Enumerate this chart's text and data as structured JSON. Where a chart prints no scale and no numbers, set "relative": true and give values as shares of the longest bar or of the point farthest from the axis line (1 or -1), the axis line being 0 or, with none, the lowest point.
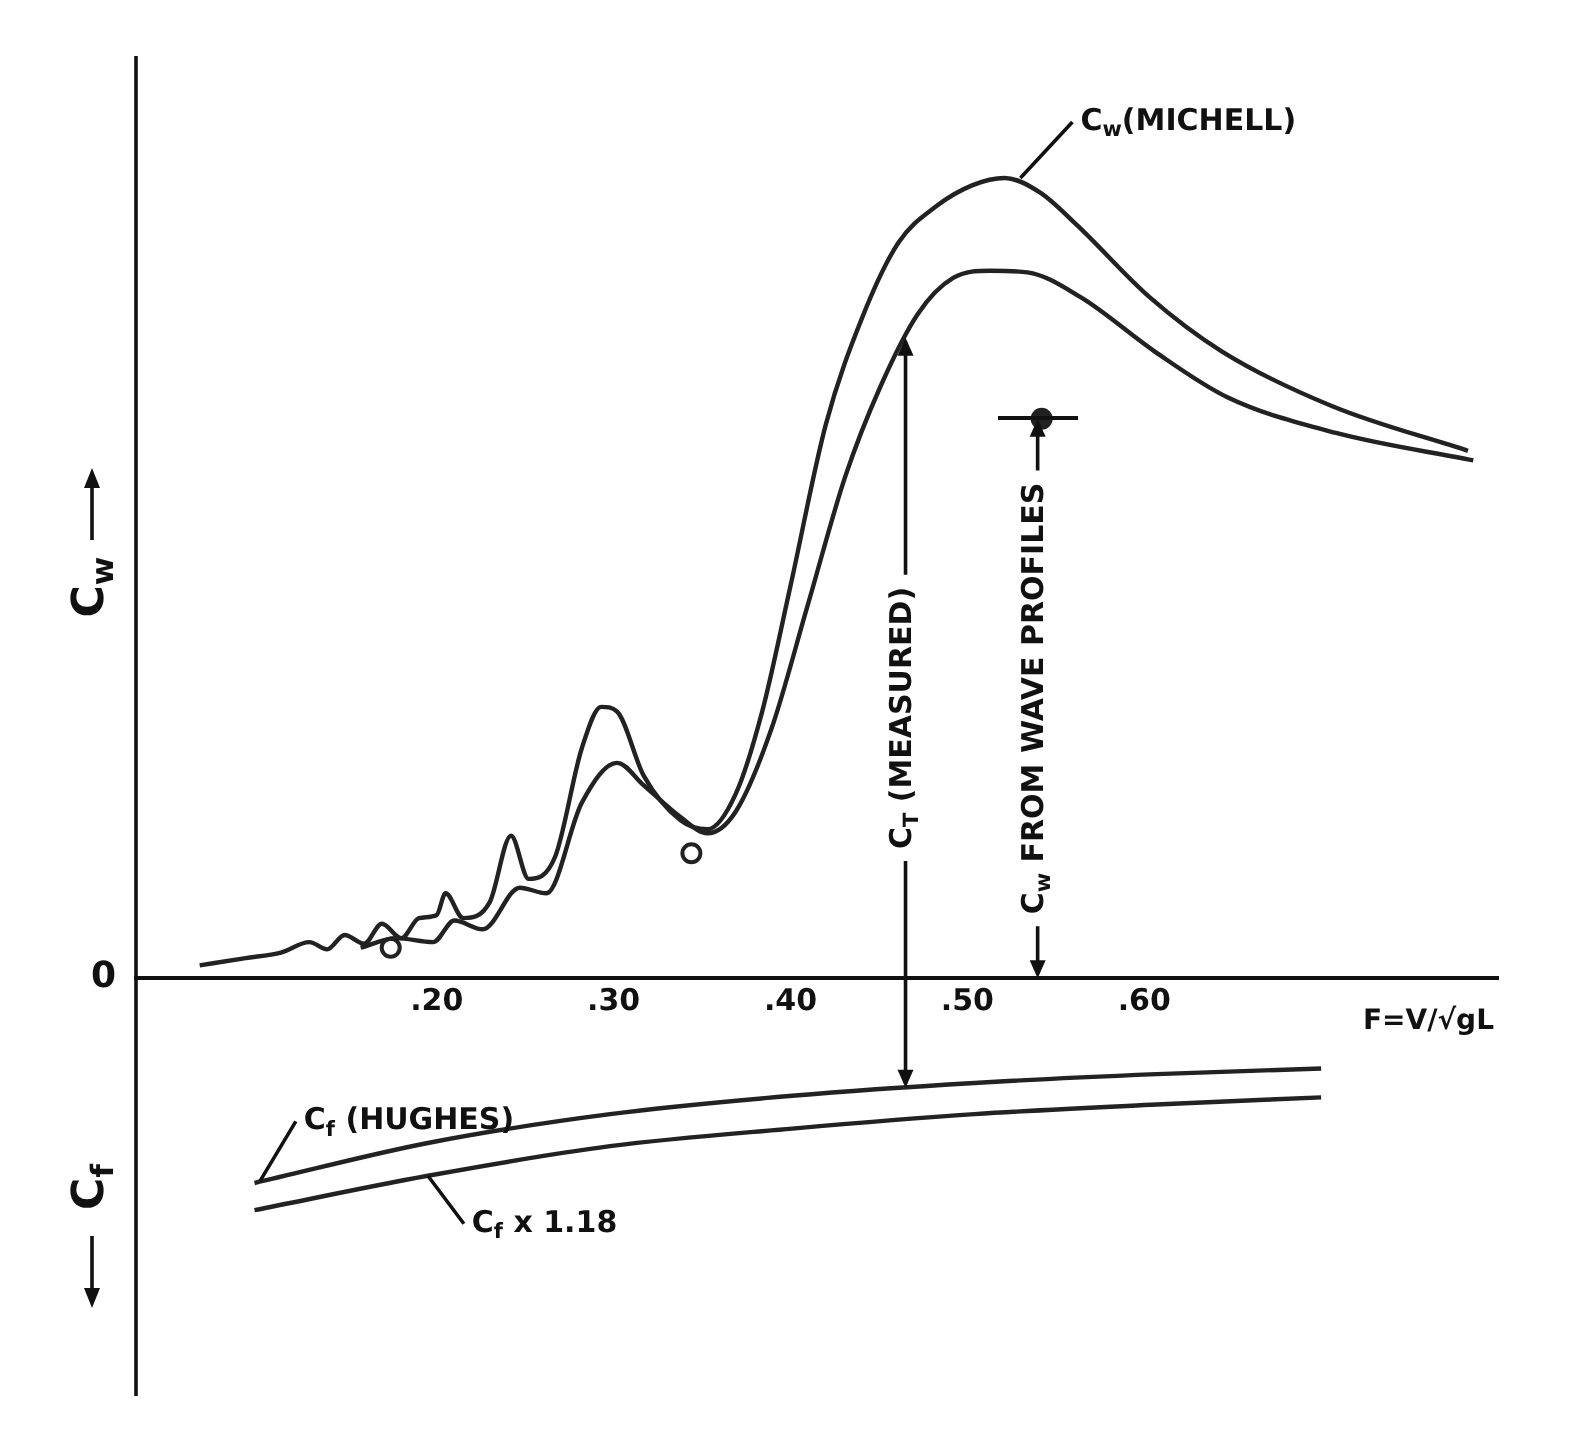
{
  "chart_data": {
    "type": "line",
    "relative": true,
    "ylabel": "C$_{w}$",
    "xlabel": "F=V/√gL",
    "xlim": [
      0.03,
      0.8
    ],
    "xticks": [
      {
        "value": 0.2,
        "label": ".20"
      },
      {
        "value": 0.3,
        "label": ".30"
      },
      {
        "value": 0.4,
        "label": ".40"
      },
      {
        "value": 0.5,
        "label": ".50"
      },
      {
        "value": 0.6,
        "label": ".60"
      }
    ],
    "series": [
      {
        "color": "#222222",
        "x": [
          0.066,
          0.092,
          0.112,
          0.128,
          0.138,
          0.148,
          0.159,
          0.169,
          0.18,
          0.19,
          0.2,
          0.205,
          0.215,
          0.23,
          0.242,
          0.252,
          0.267,
          0.282,
          0.293,
          0.302,
          0.317,
          0.338,
          0.353,
          0.369,
          0.384,
          0.4,
          0.42,
          0.441,
          0.461,
          0.482,
          0.503,
          0.521,
          0.541,
          0.562,
          0.603,
          0.644,
          0.706,
          0.783
        ],
        "values": [
          0.016,
          0.025,
          0.032,
          0.045,
          0.036,
          0.054,
          0.043,
          0.068,
          0.05,
          0.075,
          0.079,
          0.106,
          0.075,
          0.095,
          0.178,
          0.124,
          0.152,
          0.287,
          0.339,
          0.333,
          0.253,
          0.197,
          0.186,
          0.23,
          0.333,
          0.49,
          0.692,
          0.828,
          0.919,
          0.964,
          0.991,
          1.0,
          0.982,
          0.941,
          0.851,
          0.783,
          0.715,
          0.659
        ]
      },
      {
        "color": "#222222",
        "x": [
          0.157,
          0.177,
          0.198,
          0.21,
          0.226,
          0.247,
          0.262,
          0.282,
          0.302,
          0.317,
          0.338,
          0.353,
          0.369,
          0.389,
          0.41,
          0.431,
          0.451,
          0.472,
          0.492,
          0.513,
          0.534,
          0.564,
          0.606,
          0.647,
          0.709,
          0.786
        ],
        "values": [
          0.038,
          0.05,
          0.045,
          0.072,
          0.061,
          0.113,
          0.106,
          0.219,
          0.269,
          0.241,
          0.201,
          0.181,
          0.208,
          0.31,
          0.468,
          0.627,
          0.74,
          0.83,
          0.875,
          0.884,
          0.882,
          0.851,
          0.783,
          0.726,
          0.681,
          0.647
        ]
      },
      {
        "color": "#222222",
        "x": [
          0.097,
          0.195,
          0.298,
          0.401,
          0.504,
          0.607,
          0.7
        ],
        "values": [
          -0.256,
          -0.206,
          -0.17,
          -0.147,
          -0.131,
          -0.12,
          -0.113
        ]
      },
      {
        "color": "#222222",
        "x": [
          0.097,
          0.195,
          0.298,
          0.401,
          0.504,
          0.607,
          0.7
        ],
        "values": [
          -0.29,
          -0.247,
          -0.21,
          -0.188,
          -0.17,
          -0.158,
          -0.149
        ]
      },
      {
        "type": "scatter",
        "marker": "circle",
        "color": "#222222",
        "x": [
          0.174,
          0.344,
          0.542
        ],
        "values": [
          0.038,
          0.156,
          0.699
        ]
      }
    ],
    "annotations": [
      {
        "text": "C$_{w}$(MICHELL)",
        "x": 0.53,
        "y": 1.0
      },
      "C$_{T}$ (MEASURED)",
      "C$_{w}$ FROM WAVE PROFILES",
      {
        "text": "C$_{f}$ (HUGHES)",
        "x": 0.1,
        "y": -0.254
      },
      {
        "text": "C$_{f}$ x 1.18",
        "x": 0.195,
        "y": -0.247
      },
      "C$_{f}$",
      "0"
    ]
  }
}
